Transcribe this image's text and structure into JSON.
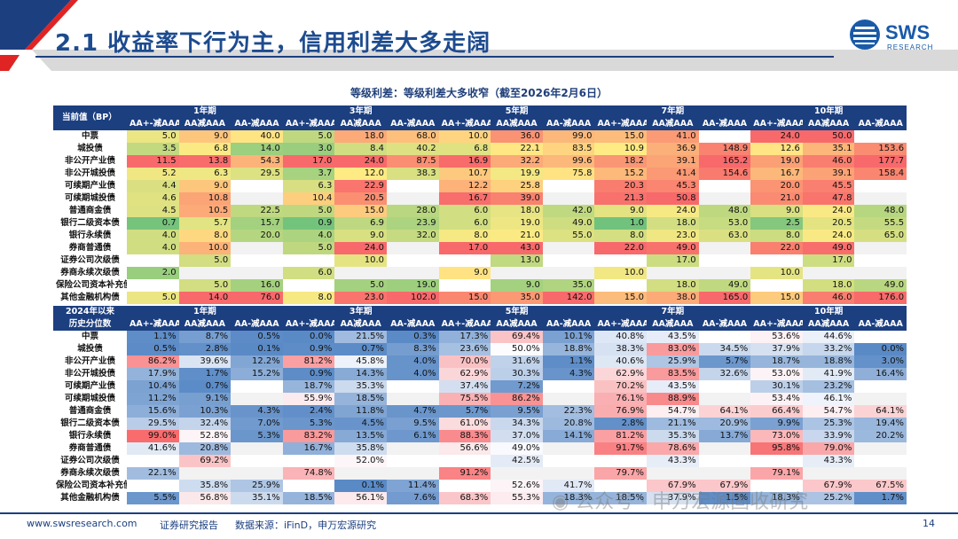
{
  "slide": {
    "title": "2.1 收益率下行为主，信用利差大多走阔",
    "page_number": "14",
    "brand": "SWS",
    "brand_sub": "RESEARCH"
  },
  "table": {
    "title": "等级利差：等级利差大多收窄（截至2026年2月6日）",
    "terms": [
      "1年期",
      "3年期",
      "5年期",
      "7年期",
      "10年期"
    ],
    "col_labels": [
      "AA+-减AAA",
      "AA减AAA",
      "AA-减AAA"
    ],
    "section1": {
      "label": "当前值（BP）",
      "rows": [
        {
          "name": "中票",
          "v": [
            "5.0",
            "9.0",
            "40.0",
            "5.0",
            "18.0",
            "68.0",
            "10.0",
            "36.0",
            "99.0",
            "15.0",
            "41.0",
            "",
            "24.0",
            "50.0",
            ""
          ]
        },
        {
          "name": "城投债",
          "v": [
            "3.5",
            "6.8",
            "14.0",
            "3.0",
            "8.4",
            "40.2",
            "6.8",
            "22.1",
            "83.5",
            "10.9",
            "36.9",
            "148.9",
            "12.6",
            "35.1",
            "153.6"
          ]
        },
        {
          "name": "非公开产业债",
          "v": [
            "11.5",
            "13.8",
            "54.3",
            "17.0",
            "24.0",
            "87.5",
            "16.9",
            "32.2",
            "99.6",
            "18.2",
            "39.1",
            "165.2",
            "19.0",
            "46.0",
            "177.7"
          ]
        },
        {
          "name": "非公开城投债",
          "v": [
            "5.2",
            "6.3",
            "29.5",
            "3.7",
            "12.0",
            "38.3",
            "10.7",
            "19.9",
            "75.8",
            "15.2",
            "41.4",
            "154.6",
            "16.7",
            "39.1",
            "158.4"
          ]
        },
        {
          "name": "可续期产业债",
          "v": [
            "4.4",
            "9.0",
            "",
            "6.3",
            "22.9",
            "",
            "12.2",
            "25.8",
            "",
            "20.3",
            "45.3",
            "",
            "20.0",
            "45.5",
            ""
          ]
        },
        {
          "name": "可续期城投债",
          "v": [
            "4.6",
            "10.8",
            "",
            "10.4",
            "20.5",
            "",
            "16.7",
            "39.0",
            "",
            "21.3",
            "50.8",
            "",
            "21.0",
            "47.8",
            ""
          ]
        },
        {
          "name": "普通商金债",
          "v": [
            "4.5",
            "10.5",
            "22.5",
            "5.0",
            "15.0",
            "28.0",
            "6.0",
            "18.0",
            "42.0",
            "9.0",
            "24.0",
            "48.0",
            "9.0",
            "24.0",
            "48.0"
          ]
        },
        {
          "name": "银行二级资本债",
          "v": [
            "0.7",
            "5.7",
            "15.7",
            "0.9",
            "6.9",
            "23.9",
            "6.0",
            "19.0",
            "49.0",
            "1.0",
            "18.0",
            "53.0",
            "2.5",
            "20.5",
            "55.5"
          ]
        },
        {
          "name": "银行永续债",
          "v": [
            "4.0",
            "8.0",
            "20.0",
            "4.0",
            "9.0",
            "32.0",
            "8.0",
            "21.0",
            "55.0",
            "8.0",
            "23.0",
            "63.0",
            "8.0",
            "24.0",
            "65.0"
          ]
        },
        {
          "name": "券商普通债",
          "v": [
            "4.0",
            "10.0",
            "",
            "5.0",
            "24.0",
            "",
            "17.0",
            "43.0",
            "",
            "22.0",
            "49.0",
            "",
            "22.0",
            "49.0",
            ""
          ]
        },
        {
          "name": "证券公司次级债",
          "v": [
            "",
            "5.0",
            "",
            "",
            "10.0",
            "",
            "",
            "13.0",
            "",
            "",
            "17.0",
            "",
            "",
            "17.0",
            ""
          ]
        },
        {
          "name": "券商永续次级债",
          "v": [
            "2.0",
            "",
            "",
            "6.0",
            "",
            "",
            "9.0",
            "",
            "",
            "10.0",
            "",
            "",
            "10.0",
            "",
            ""
          ]
        },
        {
          "name": "保险公司资本补充债",
          "v": [
            "",
            "5.0",
            "16.0",
            "",
            "5.0",
            "19.0",
            "",
            "9.0",
            "35.0",
            "",
            "18.0",
            "49.0",
            "",
            "18.0",
            "49.0"
          ]
        },
        {
          "name": "其他金融机构债",
          "v": [
            "5.0",
            "14.0",
            "76.0",
            "8.0",
            "23.0",
            "102.0",
            "15.0",
            "35.0",
            "142.0",
            "15.0",
            "38.0",
            "165.0",
            "15.0",
            "46.0",
            "176.0"
          ]
        }
      ]
    },
    "section2": {
      "label_line1": "2024年以来",
      "label_line2": "历史分位数",
      "rows": [
        {
          "name": "中票",
          "v": [
            "1.1%",
            "8.7%",
            "0.5%",
            "0.0%",
            "21.5%",
            "0.3%",
            "17.3%",
            "69.4%",
            "10.1%",
            "40.8%",
            "43.5%",
            "",
            "53.6%",
            "44.6%",
            ""
          ]
        },
        {
          "name": "城投债",
          "v": [
            "0.5%",
            "2.8%",
            "0.1%",
            "0.9%",
            "0.7%",
            "8.3%",
            "23.6%",
            "50.0%",
            "18.8%",
            "38.3%",
            "83.0%",
            "34.5%",
            "37.9%",
            "33.2%",
            "0.0%"
          ]
        },
        {
          "name": "非公开产业债",
          "v": [
            "86.2%",
            "39.6%",
            "12.2%",
            "81.2%",
            "45.8%",
            "4.0%",
            "70.0%",
            "31.6%",
            "1.1%",
            "40.6%",
            "25.9%",
            "5.7%",
            "18.7%",
            "18.8%",
            "3.0%"
          ]
        },
        {
          "name": "非公开城投债",
          "v": [
            "17.9%",
            "1.7%",
            "15.2%",
            "0.9%",
            "14.3%",
            "4.0%",
            "62.9%",
            "30.3%",
            "4.3%",
            "62.9%",
            "83.5%",
            "32.6%",
            "53.0%",
            "41.9%",
            "16.4%"
          ]
        },
        {
          "name": "可续期产业债",
          "v": [
            "10.4%",
            "0.7%",
            "",
            "18.7%",
            "35.3%",
            "",
            "37.4%",
            "7.2%",
            "",
            "70.2%",
            "43.5%",
            "",
            "30.1%",
            "23.2%",
            ""
          ]
        },
        {
          "name": "可续期城投债",
          "v": [
            "11.2%",
            "9.1%",
            "",
            "55.9%",
            "18.5%",
            "",
            "75.5%",
            "86.2%",
            "",
            "76.1%",
            "88.9%",
            "",
            "53.4%",
            "46.1%",
            ""
          ]
        },
        {
          "name": "普通商金债",
          "v": [
            "15.6%",
            "10.3%",
            "4.3%",
            "2.4%",
            "11.8%",
            "4.7%",
            "5.7%",
            "9.5%",
            "22.3%",
            "76.9%",
            "54.7%",
            "64.1%",
            "66.4%",
            "54.7%",
            "64.1%"
          ]
        },
        {
          "name": "银行二级资本债",
          "v": [
            "29.5%",
            "32.4%",
            "7.0%",
            "5.3%",
            "4.5%",
            "9.5%",
            "61.0%",
            "34.3%",
            "20.8%",
            "2.8%",
            "21.1%",
            "20.9%",
            "9.9%",
            "25.3%",
            "19.4%"
          ]
        },
        {
          "name": "银行永续债",
          "v": [
            "99.0%",
            "52.8%",
            "5.3%",
            "83.2%",
            "13.5%",
            "6.1%",
            "88.3%",
            "37.0%",
            "14.1%",
            "81.2%",
            "35.3%",
            "13.7%",
            "73.0%",
            "33.9%",
            "20.2%"
          ]
        },
        {
          "name": "券商普通债",
          "v": [
            "41.6%",
            "20.8%",
            "",
            "16.7%",
            "35.8%",
            "",
            "56.6%",
            "49.0%",
            "",
            "91.7%",
            "78.6%",
            "",
            "95.8%",
            "79.0%",
            ""
          ]
        },
        {
          "name": "证券公司次级债",
          "v": [
            "",
            "69.2%",
            "",
            "",
            "52.0%",
            "",
            "",
            "42.5%",
            "",
            "",
            "43.3%",
            "",
            "",
            "43.3%",
            ""
          ]
        },
        {
          "name": "券商永续次级债",
          "v": [
            "22.1%",
            "",
            "",
            "74.8%",
            "",
            "",
            "91.2%",
            "",
            "",
            "79.7%",
            "",
            "",
            "79.1%",
            "",
            ""
          ]
        },
        {
          "name": "保险公司资本补充债",
          "v": [
            "",
            "35.8%",
            "25.9%",
            "",
            "0.1%",
            "11.4%",
            "",
            "52.6%",
            "41.7%",
            "",
            "67.9%",
            "67.9%",
            "",
            "67.9%",
            "67.5%"
          ]
        },
        {
          "name": "其他金融机构债",
          "v": [
            "5.5%",
            "56.8%",
            "35.1%",
            "18.5%",
            "56.1%",
            "7.6%",
            "68.3%",
            "55.3%",
            "18.3%",
            "18.5%",
            "37.9%",
            "1.5%",
            "18.3%",
            "25.2%",
            "1.7%"
          ]
        }
      ]
    }
  },
  "footer": {
    "website": "www.swsresearch.com",
    "report_type": "证券研究报告",
    "source": "数据来源：iFinD，申万宏源研究"
  },
  "watermark": "公众号 · 申万宏源固收研究",
  "colors": {
    "brand_blue": "#1c3f80",
    "title_blue": "#1d4b8f",
    "accent_red": "#e02424"
  }
}
